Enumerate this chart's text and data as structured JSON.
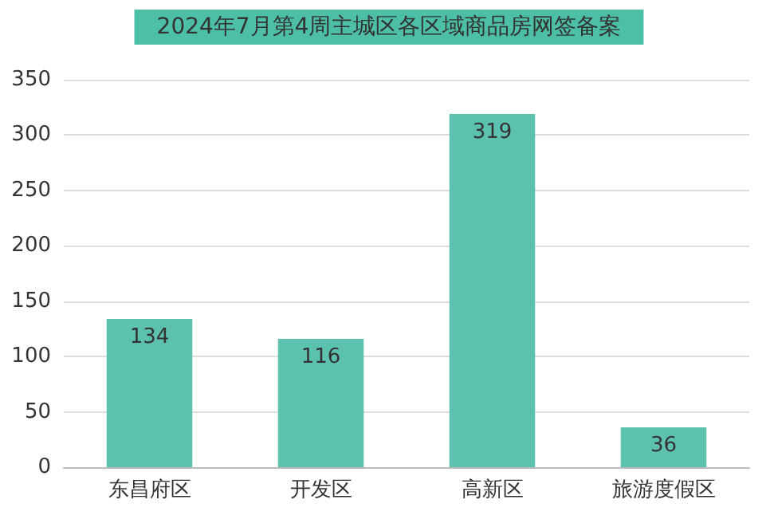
{
  "chart_data": {
    "type": "bar",
    "title": "2024年7月第4周主城区各区域商品房网签备案",
    "categories": [
      "东昌府区",
      "开发区",
      "高新区",
      "旅游度假区"
    ],
    "values": [
      134,
      116,
      319,
      36
    ],
    "color": "#5cc1ae",
    "ylim": [
      0,
      350
    ],
    "yticks": [
      0,
      50,
      100,
      150,
      200,
      250,
      300,
      350
    ],
    "grid": "y",
    "data_labels": true
  }
}
